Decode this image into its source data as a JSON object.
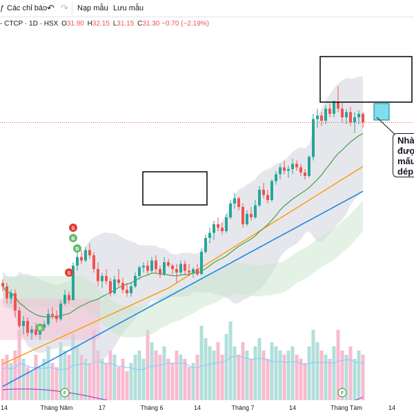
{
  "toolbar": {
    "indicators_label": "Các chỉ báo",
    "undo_icon": "undo-icon",
    "redo_icon": "redo-icon",
    "templates_label": "Nạp mẫu",
    "save_label": "Lưu mẫu"
  },
  "legend": {
    "symbol": "- CTCP · 1D · HSX",
    "o_key": "O",
    "o_val": "31.90",
    "h_key": "H",
    "h_val": "32.15",
    "l_key": "L",
    "l_val": "31.15",
    "c_key": "C",
    "c_val": "31.30",
    "change": "−0.70 (−2.19%)"
  },
  "callout": {
    "lines": [
      "Nhà",
      "được",
      "mấu",
      "dép"
    ]
  },
  "colors": {
    "up": "#26a69a",
    "down": "#ef5350",
    "vol_up": "#b2dfdb",
    "vol_down": "#f8bbd0",
    "ma20": "#43a047",
    "ma50": "#ff9800",
    "ma100": "#1e88e5",
    "ma200": "#ab47bc"
  },
  "chart_data": {
    "type": "candlestick",
    "x_labels": [
      {
        "label": "14",
        "i": 0
      },
      {
        "label": "Tháng Năm",
        "i": 13
      },
      {
        "label": "17",
        "i": 24
      },
      {
        "label": "Tháng 6",
        "i": 36
      },
      {
        "label": "14",
        "i": 47
      },
      {
        "label": "Tháng 7",
        "i": 58
      },
      {
        "label": "14",
        "i": 70
      },
      {
        "label": "Tháng Tám",
        "i": 83
      },
      {
        "label": "14",
        "i": 94
      }
    ],
    "signals": [
      {
        "label": "S",
        "i": 17,
        "price": 25.2,
        "kind": "sell"
      },
      {
        "label": "B",
        "i": 17,
        "price": 24.6,
        "kind": "buy"
      },
      {
        "label": "B",
        "i": 18,
        "price": 24.0,
        "kind": "buy"
      },
      {
        "label": "S",
        "i": 16,
        "price": 22.6,
        "kind": "sell"
      },
      {
        "label": "B",
        "i": 9,
        "price": 19.4,
        "kind": "buy"
      },
      {
        "label": "F",
        "i": 15,
        "price": 0,
        "kind": "event"
      },
      {
        "label": "F",
        "i": 82,
        "price": 0,
        "kind": "event"
      }
    ],
    "candles": [
      [
        22.0,
        22.2,
        21.5,
        21.8
      ],
      [
        21.8,
        22.0,
        20.8,
        21.1
      ],
      [
        21.1,
        21.6,
        20.8,
        21.4
      ],
      [
        21.4,
        21.6,
        20.0,
        20.4
      ],
      [
        20.4,
        20.6,
        19.4,
        19.5
      ],
      [
        19.5,
        20.1,
        19.0,
        19.8
      ],
      [
        19.8,
        20.0,
        18.9,
        19.1
      ],
      [
        19.1,
        19.5,
        18.7,
        19.3
      ],
      [
        19.3,
        19.7,
        18.9,
        19.0
      ],
      [
        19.0,
        19.6,
        18.7,
        19.4
      ],
      [
        19.4,
        19.8,
        19.2,
        19.6
      ],
      [
        19.6,
        20.5,
        19.5,
        20.2
      ],
      [
        20.2,
        20.6,
        19.9,
        20.1
      ],
      [
        20.1,
        20.4,
        19.7,
        19.9
      ],
      [
        19.9,
        21.0,
        19.8,
        20.8
      ],
      [
        20.8,
        21.6,
        20.7,
        21.3
      ],
      [
        21.3,
        21.5,
        20.8,
        21.0
      ],
      [
        21.0,
        23.2,
        21.0,
        23.0
      ],
      [
        23.0,
        23.8,
        22.7,
        23.5
      ],
      [
        23.5,
        23.9,
        23.1,
        23.3
      ],
      [
        23.3,
        24.1,
        23.2,
        23.9
      ],
      [
        23.9,
        24.3,
        23.4,
        23.6
      ],
      [
        23.6,
        23.8,
        22.6,
        22.8
      ],
      [
        22.8,
        23.2,
        21.8,
        22.1
      ],
      [
        22.1,
        22.6,
        21.7,
        22.4
      ],
      [
        22.4,
        22.8,
        21.9,
        22.1
      ],
      [
        22.1,
        22.3,
        21.2,
        21.4
      ],
      [
        21.4,
        22.4,
        21.3,
        22.2
      ],
      [
        22.2,
        22.8,
        21.8,
        22.0
      ],
      [
        22.0,
        22.3,
        21.4,
        21.6
      ],
      [
        21.6,
        22.0,
        21.2,
        21.4
      ],
      [
        21.4,
        22.0,
        21.2,
        21.8
      ],
      [
        21.8,
        22.6,
        21.7,
        22.4
      ],
      [
        22.4,
        23.0,
        22.2,
        22.9
      ],
      [
        22.9,
        23.2,
        22.6,
        23.0
      ],
      [
        23.0,
        23.3,
        22.5,
        22.7
      ],
      [
        22.7,
        23.5,
        22.6,
        23.3
      ],
      [
        23.3,
        23.6,
        22.6,
        22.8
      ],
      [
        22.8,
        23.0,
        22.3,
        22.5
      ],
      [
        22.5,
        23.5,
        22.4,
        23.2
      ],
      [
        23.2,
        23.4,
        22.9,
        23.0
      ],
      [
        23.0,
        23.1,
        22.5,
        22.8
      ],
      [
        22.8,
        23.1,
        22.0,
        22.6
      ],
      [
        22.6,
        23.3,
        22.5,
        23.1
      ],
      [
        23.1,
        23.3,
        22.5,
        22.7
      ],
      [
        22.7,
        23.1,
        22.4,
        22.6
      ],
      [
        22.6,
        22.9,
        22.3,
        22.8
      ],
      [
        22.8,
        23.1,
        22.4,
        22.5
      ],
      [
        22.5,
        24.0,
        22.5,
        23.8
      ],
      [
        23.8,
        24.8,
        23.7,
        24.6
      ],
      [
        24.6,
        25.2,
        24.3,
        24.9
      ],
      [
        24.9,
        25.6,
        24.5,
        25.4
      ],
      [
        25.4,
        25.8,
        25.0,
        25.2
      ],
      [
        25.2,
        25.5,
        24.8,
        25.0
      ],
      [
        25.0,
        26.0,
        24.9,
        25.8
      ],
      [
        25.8,
        26.8,
        25.7,
        26.6
      ],
      [
        26.6,
        27.2,
        26.3,
        26.9
      ],
      [
        26.9,
        27.0,
        26.2,
        26.4
      ],
      [
        26.4,
        26.6,
        25.2,
        25.4
      ],
      [
        25.4,
        26.2,
        25.3,
        26.0
      ],
      [
        26.0,
        26.4,
        25.6,
        25.8
      ],
      [
        25.8,
        26.8,
        25.7,
        26.5
      ],
      [
        26.5,
        27.6,
        26.4,
        27.4
      ],
      [
        27.4,
        27.8,
        26.9,
        27.1
      ],
      [
        27.1,
        27.4,
        26.6,
        26.8
      ],
      [
        26.8,
        28.0,
        26.7,
        27.9
      ],
      [
        27.9,
        28.5,
        27.7,
        28.3
      ],
      [
        28.3,
        28.9,
        28.0,
        28.7
      ],
      [
        28.7,
        29.1,
        28.3,
        28.5
      ],
      [
        28.5,
        28.8,
        28.1,
        28.6
      ],
      [
        28.6,
        29.2,
        28.3,
        28.9
      ],
      [
        28.9,
        29.1,
        28.5,
        28.7
      ],
      [
        28.7,
        28.9,
        28.2,
        28.4
      ],
      [
        28.4,
        28.6,
        28.0,
        28.2
      ],
      [
        28.2,
        29.4,
        28.1,
        29.3
      ],
      [
        29.3,
        31.8,
        29.1,
        31.5
      ],
      [
        31.5,
        32.1,
        31.0,
        31.7
      ],
      [
        31.7,
        31.9,
        31.1,
        31.4
      ],
      [
        31.4,
        32.3,
        31.2,
        32.1
      ],
      [
        32.1,
        32.4,
        31.6,
        31.8
      ],
      [
        31.8,
        32.6,
        31.6,
        32.5
      ],
      [
        32.5,
        33.4,
        31.9,
        32.1
      ],
      [
        32.1,
        32.5,
        31.3,
        31.6
      ],
      [
        31.6,
        32.1,
        31.2,
        31.9
      ],
      [
        31.9,
        32.2,
        31.1,
        31.3
      ],
      [
        31.3,
        31.9,
        30.7,
        31.6
      ],
      [
        31.6,
        32.0,
        31.2,
        31.8
      ],
      [
        31.8,
        31.9,
        31.0,
        31.3
      ]
    ],
    "volume": [
      0.5,
      0.55,
      0.45,
      0.6,
      0.85,
      0.5,
      0.4,
      0.35,
      0.55,
      0.4,
      0.5,
      0.65,
      0.45,
      0.4,
      0.7,
      0.6,
      0.55,
      0.8,
      0.65,
      0.55,
      0.5,
      0.45,
      0.85,
      0.6,
      0.5,
      0.45,
      0.6,
      0.55,
      0.4,
      0.5,
      0.35,
      0.45,
      0.55,
      0.6,
      0.5,
      0.85,
      0.7,
      0.6,
      0.55,
      0.65,
      0.5,
      0.45,
      0.6,
      0.55,
      0.5,
      0.4,
      0.45,
      0.55,
      0.9,
      0.75,
      0.65,
      0.6,
      0.7,
      0.55,
      0.8,
      0.95,
      0.65,
      0.55,
      0.7,
      0.6,
      0.5,
      0.65,
      0.75,
      0.6,
      0.5,
      0.7,
      0.65,
      0.6,
      0.55,
      0.6,
      0.65,
      0.55,
      0.5,
      0.45,
      0.65,
      0.85,
      0.7,
      0.6,
      0.55,
      0.5,
      0.65,
      0.85,
      0.6,
      0.55,
      0.65,
      0.5,
      0.6,
      0.55
    ]
  }
}
